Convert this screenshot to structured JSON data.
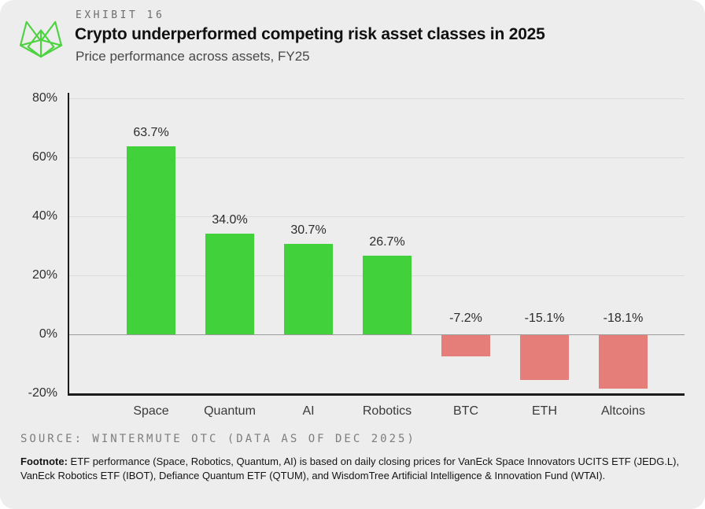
{
  "card": {
    "background": "#EDEDED"
  },
  "header": {
    "exhibit_label": "EXHIBIT 16",
    "title": "Crypto underperformed competing risk asset classes in 2025",
    "subtitle": "Price performance across assets, FY25",
    "logo_color": "#4CD23F"
  },
  "chart_data": {
    "type": "bar",
    "title": "Crypto underperformed competing risk asset classes in 2025",
    "subtitle": "Price performance across assets, FY25",
    "categories": [
      "Space",
      "Quantum",
      "AI",
      "Robotics",
      "BTC",
      "ETH",
      "Altcoins"
    ],
    "values": [
      63.7,
      34.0,
      30.7,
      26.7,
      -7.2,
      -15.1,
      -18.1
    ],
    "value_labels": [
      "63.7%",
      "34.0%",
      "30.7%",
      "26.7%",
      "-7.2%",
      "-15.1%",
      "-18.1%"
    ],
    "ylim": [
      -20,
      80
    ],
    "yticks": [
      80,
      60,
      40,
      20,
      0,
      -20
    ],
    "ytick_labels": [
      "80%",
      "60%",
      "40%",
      "20%",
      "0%",
      "-20%"
    ],
    "grid": true,
    "legend": "none",
    "positive_color": "#41D23B",
    "negative_color": "#E57E79",
    "xlabel": "",
    "ylabel": ""
  },
  "source": "SOURCE: WINTERMUTE OTC (DATA AS OF DEC 2025)",
  "footnote": {
    "prefix": "Footnote:",
    "text": " ETF performance (Space, Robotics, Quantum, AI) is based on daily closing prices for VanEck Space Innovators UCITS ETF (JEDG.L), VanEck Robotics ETF (IBOT), Defiance Quantum ETF (QTUM), and WisdomTree Artificial Intelligence & Innovation Fund (WTAI)."
  }
}
